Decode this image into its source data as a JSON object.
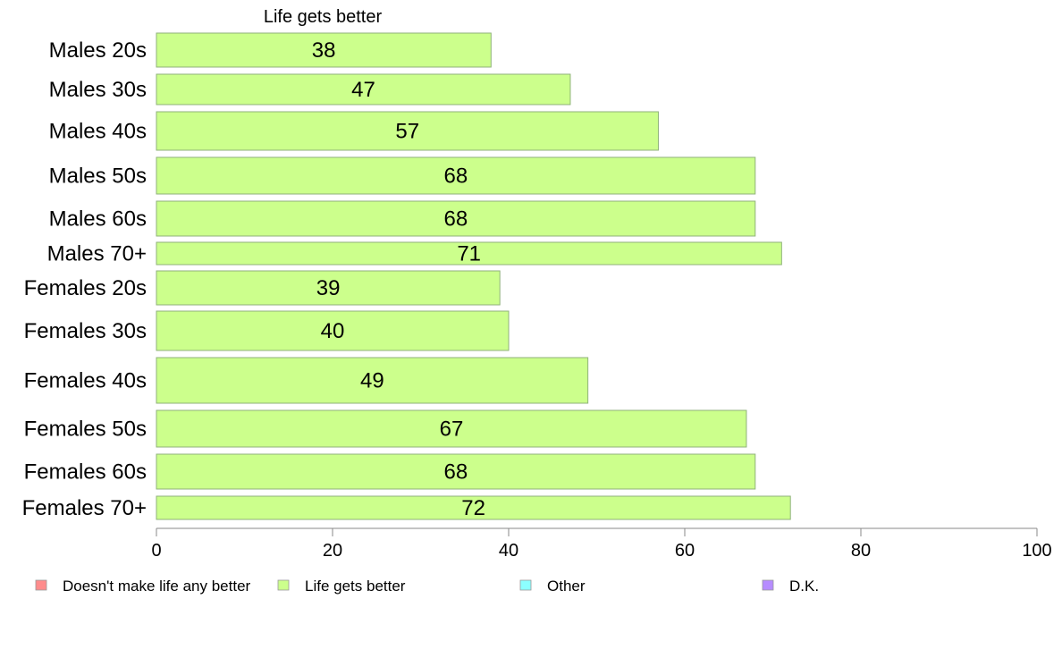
{
  "chart_data": {
    "type": "bar",
    "orientation": "horizontal",
    "title": "Life gets better",
    "categories": [
      "Males 20s",
      "Males 30s",
      "Males 40s",
      "Males 50s",
      "Males 60s",
      "Males 70+",
      "Females 20s",
      "Females 30s",
      "Females 40s",
      "Females 50s",
      "Females 60s",
      "Females 70+"
    ],
    "values": [
      38,
      47,
      57,
      68,
      68,
      71,
      39,
      40,
      49,
      67,
      68,
      72
    ],
    "xlim": [
      0,
      100
    ],
    "xticks": [
      0,
      20,
      40,
      60,
      80,
      100
    ],
    "grid": false,
    "legend": {
      "placement": "bottom",
      "entries": [
        {
          "label": "Doesn't make life any better",
          "color": "#ff8c8c"
        },
        {
          "label": "Life gets better",
          "color": "#ccff8c"
        },
        {
          "label": "Other",
          "color": "#8cffff"
        },
        {
          "label": "D.K.",
          "color": "#b68cff"
        }
      ]
    },
    "bar_color": "#ccff8c",
    "bar_stroke": "#8fb27a"
  }
}
